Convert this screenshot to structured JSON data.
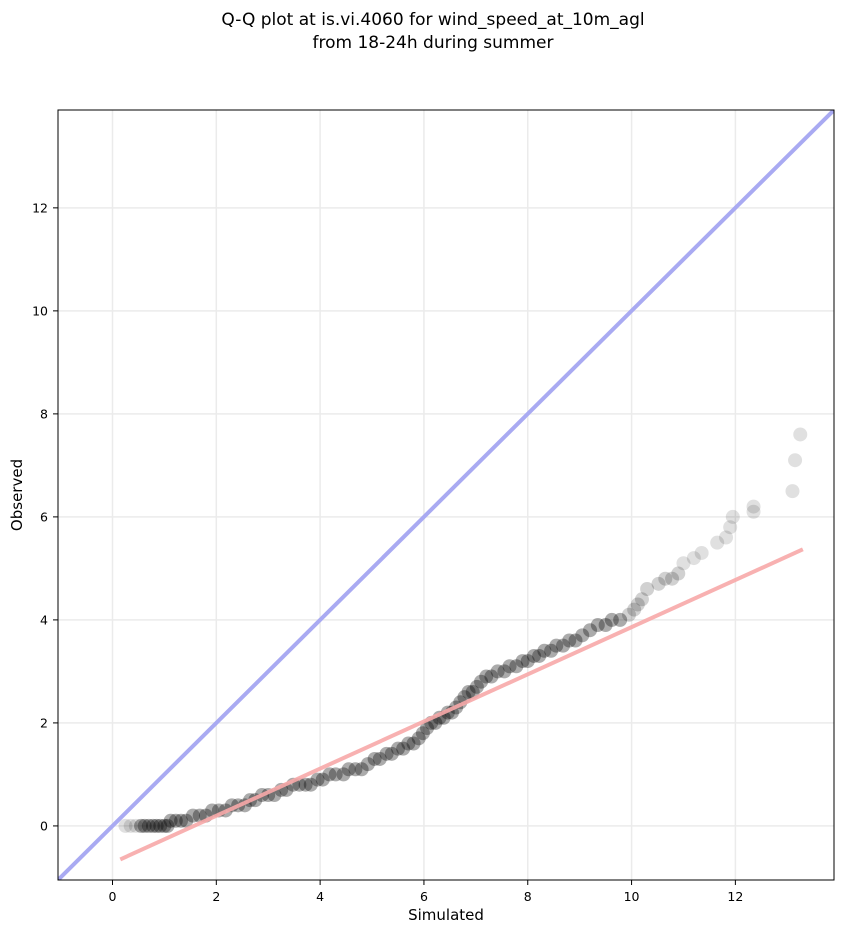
{
  "chart_data": {
    "type": "scatter",
    "title": "Q-Q plot at is.vi.4060 for wind_speed_at_10m_agl",
    "subtitle": "from 18-24h during summer",
    "xlabel": "Simulated",
    "ylabel": "Observed",
    "xlim": [
      -1.05,
      13.9
    ],
    "ylim": [
      -1.05,
      13.9
    ],
    "xticks": [
      0,
      2,
      4,
      6,
      8,
      10,
      12
    ],
    "yticks": [
      0,
      2,
      4,
      6,
      8,
      10,
      12
    ],
    "grid": true,
    "legend": "none",
    "colors": {
      "points": "#000000",
      "identity_line": "#a9aaf2",
      "fit_line": "#f7a8a8",
      "grid": "#ebebeb"
    },
    "identity_line": {
      "x": [
        -1.05,
        13.9
      ],
      "y": [
        -1.05,
        13.9
      ]
    },
    "fit_line": {
      "x": [
        0.15,
        13.3
      ],
      "y": [
        -0.65,
        5.37
      ]
    },
    "points": [
      [
        0.25,
        0.0
      ],
      [
        0.35,
        0.0
      ],
      [
        0.45,
        0.0
      ],
      [
        0.55,
        0.0
      ],
      [
        0.62,
        0.0
      ],
      [
        0.7,
        0.0
      ],
      [
        0.78,
        0.0
      ],
      [
        0.85,
        0.0
      ],
      [
        0.92,
        0.0
      ],
      [
        1.0,
        0.0
      ],
      [
        1.06,
        0.0
      ],
      [
        1.12,
        0.1
      ],
      [
        1.22,
        0.1
      ],
      [
        1.32,
        0.1
      ],
      [
        1.42,
        0.1
      ],
      [
        1.55,
        0.2
      ],
      [
        1.68,
        0.2
      ],
      [
        1.8,
        0.2
      ],
      [
        1.92,
        0.3
      ],
      [
        2.05,
        0.3
      ],
      [
        2.18,
        0.3
      ],
      [
        2.3,
        0.4
      ],
      [
        2.42,
        0.4
      ],
      [
        2.55,
        0.4
      ],
      [
        2.65,
        0.5
      ],
      [
        2.75,
        0.5
      ],
      [
        2.88,
        0.6
      ],
      [
        3.0,
        0.6
      ],
      [
        3.12,
        0.6
      ],
      [
        3.25,
        0.7
      ],
      [
        3.35,
        0.7
      ],
      [
        3.48,
        0.8
      ],
      [
        3.6,
        0.8
      ],
      [
        3.72,
        0.8
      ],
      [
        3.82,
        0.8
      ],
      [
        3.95,
        0.9
      ],
      [
        4.05,
        0.9
      ],
      [
        4.18,
        1.0
      ],
      [
        4.3,
        1.0
      ],
      [
        4.45,
        1.0
      ],
      [
        4.55,
        1.1
      ],
      [
        4.68,
        1.1
      ],
      [
        4.8,
        1.1
      ],
      [
        4.92,
        1.2
      ],
      [
        5.05,
        1.3
      ],
      [
        5.15,
        1.3
      ],
      [
        5.28,
        1.4
      ],
      [
        5.38,
        1.4
      ],
      [
        5.5,
        1.5
      ],
      [
        5.6,
        1.5
      ],
      [
        5.7,
        1.6
      ],
      [
        5.8,
        1.6
      ],
      [
        5.9,
        1.7
      ],
      [
        5.98,
        1.8
      ],
      [
        6.06,
        1.9
      ],
      [
        6.14,
        2.0
      ],
      [
        6.22,
        2.0
      ],
      [
        6.3,
        2.1
      ],
      [
        6.38,
        2.1
      ],
      [
        6.46,
        2.2
      ],
      [
        6.54,
        2.2
      ],
      [
        6.62,
        2.3
      ],
      [
        6.7,
        2.4
      ],
      [
        6.78,
        2.5
      ],
      [
        6.86,
        2.6
      ],
      [
        6.94,
        2.6
      ],
      [
        7.02,
        2.7
      ],
      [
        7.1,
        2.8
      ],
      [
        7.2,
        2.9
      ],
      [
        7.3,
        2.9
      ],
      [
        7.42,
        3.0
      ],
      [
        7.55,
        3.0
      ],
      [
        7.65,
        3.1
      ],
      [
        7.78,
        3.1
      ],
      [
        7.9,
        3.2
      ],
      [
        8.0,
        3.2
      ],
      [
        8.12,
        3.3
      ],
      [
        8.22,
        3.3
      ],
      [
        8.32,
        3.4
      ],
      [
        8.45,
        3.4
      ],
      [
        8.55,
        3.5
      ],
      [
        8.68,
        3.5
      ],
      [
        8.8,
        3.6
      ],
      [
        8.92,
        3.6
      ],
      [
        9.05,
        3.7
      ],
      [
        9.2,
        3.8
      ],
      [
        9.35,
        3.9
      ],
      [
        9.5,
        3.9
      ],
      [
        9.62,
        4.0
      ],
      [
        9.78,
        4.0
      ],
      [
        9.95,
        4.1
      ],
      [
        10.05,
        4.2
      ],
      [
        10.12,
        4.3
      ],
      [
        10.2,
        4.4
      ],
      [
        10.3,
        4.6
      ],
      [
        10.52,
        4.7
      ],
      [
        10.65,
        4.8
      ],
      [
        10.78,
        4.8
      ],
      [
        10.9,
        4.9
      ],
      [
        11.0,
        5.1
      ],
      [
        11.2,
        5.2
      ],
      [
        11.35,
        5.3
      ],
      [
        11.65,
        5.5
      ],
      [
        11.82,
        5.6
      ],
      [
        11.9,
        5.8
      ],
      [
        11.95,
        6.0
      ],
      [
        12.35,
        6.1
      ],
      [
        12.35,
        6.2
      ],
      [
        13.1,
        6.5
      ],
      [
        13.15,
        7.1
      ],
      [
        13.25,
        7.6
      ]
    ]
  }
}
